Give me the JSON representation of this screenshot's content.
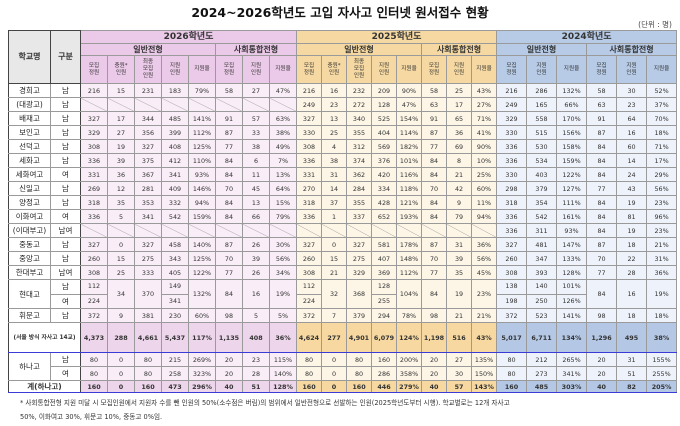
{
  "title": "2024~2026학년도 고입 자사고 인터넷 원서접수 현황",
  "unit": "(단위 : 명)",
  "header": {
    "school": "학교명",
    "gender": "구분",
    "years": [
      "2026학년도",
      "2025학년도",
      "2024학년도"
    ],
    "general": "일반전형",
    "social": "사회통합전형",
    "cols_general_full": [
      "모집\n정원",
      "충원*\n인원",
      "최종\n모집\n인원",
      "지원\n인원",
      "지원율"
    ],
    "cols_general_2024": [
      "모집\n정원",
      "지원\n인원",
      "지원율"
    ],
    "cols_social": [
      "모집\n정원",
      "지원\n인원",
      "지원율"
    ]
  },
  "colors": {
    "y2026": "#ebc9e8",
    "y2025": "#f6d9a2",
    "y2024": "#b7cbe7",
    "divider": "#3b3bd6"
  },
  "rows": [
    {
      "school": "경희고",
      "gender": "남",
      "y2026": [
        "216",
        "15",
        "231",
        "183",
        "79%",
        "58",
        "27",
        "47%"
      ],
      "y2025": [
        "216",
        "16",
        "232",
        "209",
        "90%",
        "58",
        "25",
        "43%"
      ],
      "y2024": [
        "216",
        "286",
        "132%",
        "58",
        "30",
        "52%"
      ]
    },
    {
      "school": "(대광고)",
      "gender": "남",
      "y2026": null,
      "y2025": [
        "249",
        "23",
        "272",
        "128",
        "47%",
        "63",
        "17",
        "27%"
      ],
      "y2024": [
        "249",
        "165",
        "66%",
        "63",
        "23",
        "37%"
      ]
    },
    {
      "school": "배재고",
      "gender": "남",
      "y2026": [
        "327",
        "17",
        "344",
        "485",
        "141%",
        "91",
        "57",
        "63%"
      ],
      "y2025": [
        "327",
        "13",
        "340",
        "525",
        "154%",
        "91",
        "65",
        "71%"
      ],
      "y2024": [
        "329",
        "558",
        "170%",
        "91",
        "64",
        "70%"
      ]
    },
    {
      "school": "보인고",
      "gender": "남",
      "y2026": [
        "329",
        "27",
        "356",
        "399",
        "112%",
        "87",
        "33",
        "38%"
      ],
      "y2025": [
        "330",
        "25",
        "355",
        "404",
        "114%",
        "87",
        "36",
        "41%"
      ],
      "y2024": [
        "330",
        "515",
        "156%",
        "87",
        "16",
        "18%"
      ]
    },
    {
      "school": "선덕고",
      "gender": "남",
      "y2026": [
        "308",
        "19",
        "327",
        "408",
        "125%",
        "77",
        "38",
        "49%"
      ],
      "y2025": [
        "308",
        "4",
        "312",
        "569",
        "182%",
        "77",
        "69",
        "90%"
      ],
      "y2024": [
        "336",
        "530",
        "158%",
        "84",
        "60",
        "71%"
      ]
    },
    {
      "school": "세화고",
      "gender": "남",
      "y2026": [
        "336",
        "39",
        "375",
        "412",
        "110%",
        "84",
        "6",
        "7%"
      ],
      "y2025": [
        "336",
        "38",
        "374",
        "376",
        "101%",
        "84",
        "8",
        "10%"
      ],
      "y2024": [
        "336",
        "534",
        "159%",
        "84",
        "14",
        "17%"
      ]
    },
    {
      "school": "세화여고",
      "gender": "여",
      "y2026": [
        "331",
        "36",
        "367",
        "341",
        "93%",
        "84",
        "11",
        "13%"
      ],
      "y2025": [
        "331",
        "31",
        "362",
        "420",
        "116%",
        "84",
        "21",
        "25%"
      ],
      "y2024": [
        "330",
        "403",
        "122%",
        "84",
        "24",
        "29%"
      ]
    },
    {
      "school": "신일고",
      "gender": "남",
      "y2026": [
        "269",
        "12",
        "281",
        "409",
        "146%",
        "70",
        "45",
        "64%"
      ],
      "y2025": [
        "270",
        "14",
        "284",
        "334",
        "118%",
        "70",
        "42",
        "60%"
      ],
      "y2024": [
        "298",
        "379",
        "127%",
        "77",
        "43",
        "56%"
      ]
    },
    {
      "school": "양정고",
      "gender": "남",
      "y2026": [
        "318",
        "35",
        "353",
        "332",
        "94%",
        "84",
        "13",
        "15%"
      ],
      "y2025": [
        "318",
        "37",
        "355",
        "428",
        "121%",
        "84",
        "9",
        "11%"
      ],
      "y2024": [
        "318",
        "354",
        "111%",
        "84",
        "19",
        "23%"
      ]
    },
    {
      "school": "이화여고",
      "gender": "여",
      "y2026": [
        "336",
        "5",
        "341",
        "542",
        "159%",
        "84",
        "66",
        "79%"
      ],
      "y2025": [
        "336",
        "1",
        "337",
        "652",
        "193%",
        "84",
        "79",
        "94%"
      ],
      "y2024": [
        "336",
        "542",
        "161%",
        "84",
        "81",
        "96%"
      ]
    },
    {
      "school": "(이대부고)",
      "gender": "남여",
      "y2026": null,
      "y2025": null,
      "y2024": [
        "336",
        "311",
        "93%",
        "84",
        "19",
        "23%"
      ]
    },
    {
      "school": "중동고",
      "gender": "남",
      "y2026": [
        "327",
        "0",
        "327",
        "458",
        "140%",
        "87",
        "26",
        "30%"
      ],
      "y2025": [
        "327",
        "0",
        "327",
        "581",
        "178%",
        "87",
        "31",
        "36%"
      ],
      "y2024": [
        "327",
        "481",
        "147%",
        "87",
        "18",
        "21%"
      ]
    },
    {
      "school": "중앙고",
      "gender": "남",
      "y2026": [
        "260",
        "15",
        "275",
        "343",
        "125%",
        "70",
        "39",
        "56%"
      ],
      "y2025": [
        "260",
        "15",
        "275",
        "407",
        "148%",
        "70",
        "39",
        "56%"
      ],
      "y2024": [
        "260",
        "347",
        "133%",
        "70",
        "22",
        "31%"
      ]
    },
    {
      "school": "한대부고",
      "gender": "남여",
      "y2026": [
        "308",
        "25",
        "333",
        "405",
        "122%",
        "77",
        "26",
        "34%"
      ],
      "y2025": [
        "308",
        "21",
        "329",
        "369",
        "112%",
        "77",
        "35",
        "45%"
      ],
      "y2024": [
        "308",
        "393",
        "128%",
        "77",
        "28",
        "36%"
      ]
    },
    {
      "school": "현대고",
      "gender": [
        "남",
        "여"
      ],
      "y2026": [
        [
          "112",
          "224"
        ],
        "34",
        "370",
        [
          "149",
          "341"
        ],
        "132%",
        "84",
        "16",
        "19%"
      ],
      "y2025": [
        [
          "112",
          "224"
        ],
        "32",
        "368",
        [
          "128",
          "255"
        ],
        "104%",
        "84",
        "19",
        "23%"
      ],
      "y2024": [
        [
          "138",
          "198"
        ],
        [
          "140",
          "250"
        ],
        [
          "101%",
          "126%"
        ],
        "84",
        "16",
        "19%"
      ]
    },
    {
      "school": "휘문고",
      "gender": "남",
      "y2026": [
        "372",
        "9",
        "381",
        "230",
        "60%",
        "98",
        "5",
        "5%"
      ],
      "y2025": [
        "372",
        "7",
        "379",
        "294",
        "78%",
        "98",
        "21",
        "21%"
      ],
      "y2024": [
        "372",
        "523",
        "141%",
        "98",
        "18",
        "18%"
      ]
    }
  ],
  "subtotal": {
    "label": "(서울 방식 자사고 14교)",
    "y2026": [
      "4,373",
      "288",
      "4,661",
      "5,437",
      "117%",
      "1,135",
      "408",
      "36%"
    ],
    "y2025": [
      "4,624",
      "277",
      "4,901",
      "6,079",
      "124%",
      "1,198",
      "516",
      "43%"
    ],
    "y2024": [
      "5,017",
      "6,711",
      "134%",
      "1,296",
      "495",
      "38%"
    ]
  },
  "hana": {
    "school": "하나고",
    "rows": [
      {
        "gender": "남",
        "y2026": [
          "80",
          "0",
          "80",
          "215",
          "269%",
          "20",
          "23",
          "115%"
        ],
        "y2025": [
          "80",
          "0",
          "80",
          "160",
          "200%",
          "20",
          "27",
          "135%"
        ],
        "y2024": [
          "80",
          "212",
          "265%",
          "20",
          "31",
          "155%"
        ]
      },
      {
        "gender": "여",
        "y2026": [
          "80",
          "0",
          "80",
          "258",
          "323%",
          "20",
          "28",
          "140%"
        ],
        "y2025": [
          "80",
          "0",
          "80",
          "286",
          "358%",
          "20",
          "30",
          "150%"
        ],
        "y2024": [
          "80",
          "273",
          "341%",
          "20",
          "51",
          "255%"
        ]
      }
    ]
  },
  "grand": {
    "label": "계(하나고)",
    "y2026": [
      "160",
      "0",
      "160",
      "473",
      "296%",
      "40",
      "51",
      "128%"
    ],
    "y2025": [
      "160",
      "0",
      "160",
      "446",
      "279%",
      "40",
      "57",
      "143%"
    ],
    "y2024": [
      "160",
      "485",
      "303%",
      "40",
      "82",
      "205%"
    ]
  },
  "footnote": [
    "* 사회통합전형 지원 미달 시 모집인원에서 지원자 수를 뺀 인원의 50%(소수점은 버림)의 범위에서 일반전형으로 선발하는 인원(2025학년도부터 시행). 학교별로는 12개 자사고",
    "50%, 이화여고 30%, 휘문고 10%, 중동고 0%임."
  ]
}
